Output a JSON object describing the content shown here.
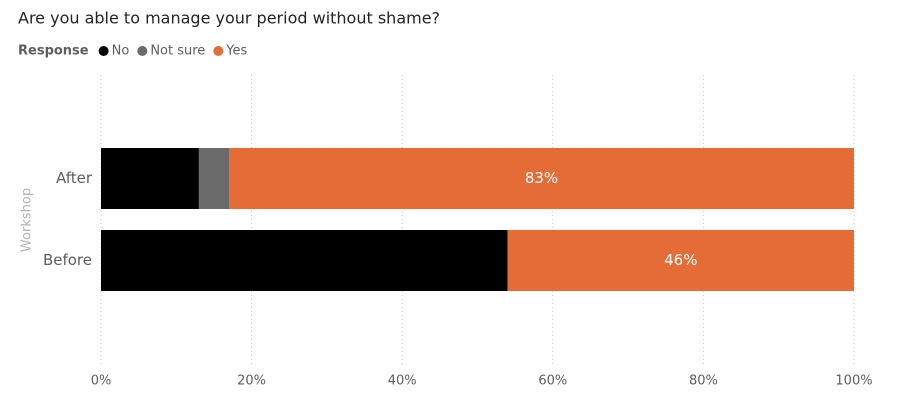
{
  "chart_data": {
    "type": "stacked-bar-horizontal",
    "title": "Are you able to manage your period without shame?",
    "legend_title": "Response",
    "y_label": "Workshop",
    "categories": [
      "After",
      "Before"
    ],
    "series": [
      {
        "name": "No",
        "color": "#000000",
        "values": [
          13,
          54
        ]
      },
      {
        "name": "Not sure",
        "color": "#6b6b6b",
        "values": [
          4,
          0
        ]
      },
      {
        "name": "Yes",
        "color": "#e66c37",
        "values": [
          83,
          46
        ],
        "value_labels": [
          "83%",
          "46%"
        ]
      }
    ],
    "xlim": [
      0,
      100
    ],
    "xticks": [
      {
        "value": 0,
        "label": "0%"
      },
      {
        "value": 20,
        "label": "20%"
      },
      {
        "value": 40,
        "label": "40%"
      },
      {
        "value": 60,
        "label": "60%"
      },
      {
        "value": 80,
        "label": "80%"
      },
      {
        "value": 100,
        "label": "100%"
      }
    ],
    "grid": true,
    "legend_position": "top-left"
  }
}
